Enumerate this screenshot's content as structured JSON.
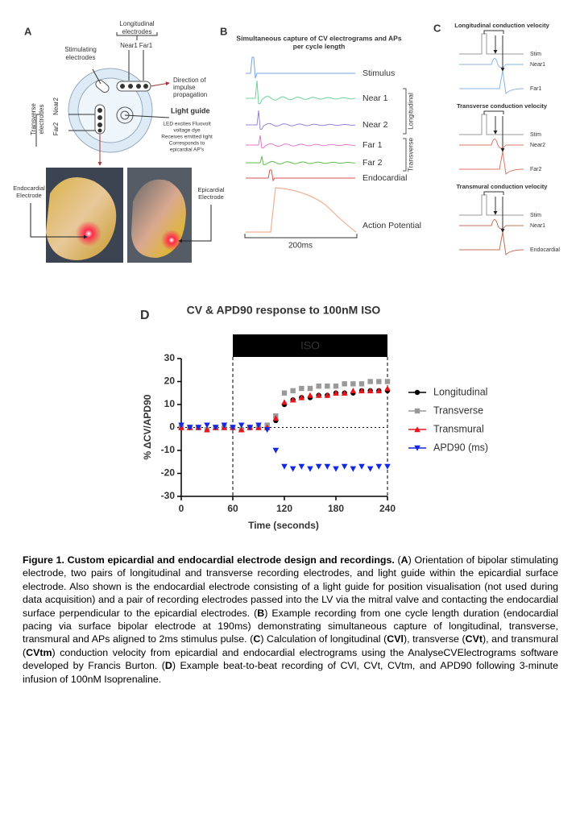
{
  "panel_a": {
    "letter": "A",
    "longitudinal_label": [
      "Longitudinal",
      "electrodes"
    ],
    "near1": "Near1",
    "far1": "Far1",
    "stimulating_label": [
      "Stimulating",
      "electrodes"
    ],
    "direction_label": [
      "Direction of",
      "impulse",
      "propagation"
    ],
    "transverse_label": [
      "Transverse",
      "electrodes"
    ],
    "near2": "Near2",
    "far2": "Far2",
    "light_guide": "Light guide",
    "light_guide_notes": [
      "LED excites Fluovolt",
      "voltage dye",
      "Receives emitted light",
      "Corresponds to",
      "epicardial AP's"
    ],
    "endocardial_label": [
      "Endocardial",
      "Electrode"
    ],
    "epicardial_label": [
      "Epicardial",
      "Electrode"
    ]
  },
  "panel_b": {
    "letter": "B",
    "title": [
      "Simultaneous capture of CV electrograms and APs",
      "per cycle length"
    ],
    "traces": [
      "Stimulus",
      "Near 1",
      "Near 2",
      "Far 1",
      "Far 2",
      "Endocardial",
      "Action Potential"
    ],
    "groups": [
      "Longitudinal",
      "Transverse"
    ],
    "scale": "200ms"
  },
  "panel_c": {
    "letter": "C",
    "blocks": [
      {
        "title": "Longitudinal conduction velocity",
        "traces": [
          "Stim",
          "Near1",
          "Far1"
        ]
      },
      {
        "title": "Transverse conduction velocity",
        "traces": [
          "Stim",
          "Near2",
          "Far2"
        ]
      },
      {
        "title": "Transmural conduction velocity",
        "traces": [
          "Stim",
          "Near1",
          "Endocardial"
        ]
      }
    ]
  },
  "panel_d": {
    "letter": "D"
  },
  "chart_data": {
    "type": "scatter",
    "title": "CV & APD90 response to 100nM ISO",
    "x_label": "Time (seconds)",
    "y_label": "% ΔCV/APD90",
    "x": [
      0,
      10,
      20,
      30,
      40,
      50,
      60,
      70,
      80,
      90,
      100,
      110,
      120,
      130,
      140,
      150,
      160,
      170,
      180,
      190,
      200,
      210,
      220,
      230,
      240
    ],
    "series": [
      {
        "name": "Longitudinal",
        "color": "#000000",
        "marker": "circle",
        "values": [
          0,
          0,
          0,
          -1,
          0,
          0,
          0,
          -1,
          0,
          0,
          0,
          3,
          10,
          12,
          13,
          13,
          14,
          14,
          15,
          15,
          15,
          16,
          16,
          16,
          16
        ]
      },
      {
        "name": "Transverse",
        "color": "#999999",
        "marker": "square",
        "values": [
          0,
          0,
          0,
          -1,
          0,
          0,
          0,
          -1,
          0,
          0,
          1,
          5,
          15,
          16,
          17,
          17,
          18,
          18,
          18,
          19,
          19,
          19,
          20,
          20,
          20
        ]
      },
      {
        "name": "Transmural",
        "color": "#e8141c",
        "marker": "triangle-up",
        "values": [
          0,
          0,
          0,
          -1,
          0,
          0,
          0,
          -1,
          0,
          0,
          0,
          4,
          11,
          12,
          13,
          14,
          14,
          14,
          15,
          15,
          16,
          16,
          16,
          16,
          17
        ]
      },
      {
        "name": "APD90 (ms)",
        "color": "#1428e0",
        "marker": "triangle-down",
        "values": [
          1,
          0,
          0,
          1,
          0,
          1,
          0,
          1,
          0,
          1,
          -1,
          -10,
          -17,
          -18,
          -17,
          -18,
          -17,
          -17,
          -18,
          -17,
          -18,
          -17,
          -18,
          -17,
          -17
        ]
      }
    ],
    "xlim": [
      0,
      240
    ],
    "xticks": [
      0,
      60,
      120,
      180,
      240
    ],
    "ylim": [
      -30,
      30
    ],
    "yticks": [
      -30,
      -20,
      -10,
      0,
      10,
      20,
      30
    ],
    "reference_line": 0,
    "annotations": [
      {
        "text": "ISO",
        "x": [
          60,
          240
        ]
      }
    ],
    "legend": "right"
  },
  "caption": {
    "heading": "Figure 1. Custom epicardial and endocardial electrode design and recordings.",
    "runs": [
      " (",
      "A",
      ") Orientation of bipolar stimulating electrode, two pairs of longitudinal and transverse recording electrodes, and light guide within the epicardial surface electrode. Also shown is the endocardial electrode consisting of a light guide for position visualisation (not used during data acquisition) and a pair of recording electrodes passed into the LV via the mitral valve and contacting the endocardial surface perpendicular to the epicardial electrodes. (",
      "B",
      ") Example recording from one cycle length duration (endocardial pacing via surface bipolar electrode at 190ms) demonstrating simultaneous capture of longitudinal, transverse, transmural and APs aligned to 2ms stimulus pulse. (",
      "C",
      ") Calculation of longitudinal (",
      "CVl",
      "), transverse (",
      "CVt",
      "), and transmural (",
      "CVtm",
      ") conduction velocity from epicardial and endocardial electrograms using the AnalyseCVElectrograms software developed by Francis Burton. (",
      "D",
      ") Example beat-to-beat recording of CVl, CVt, CVtm, and APD90 following 3-minute infusion of 100nM Isoprenaline."
    ]
  }
}
